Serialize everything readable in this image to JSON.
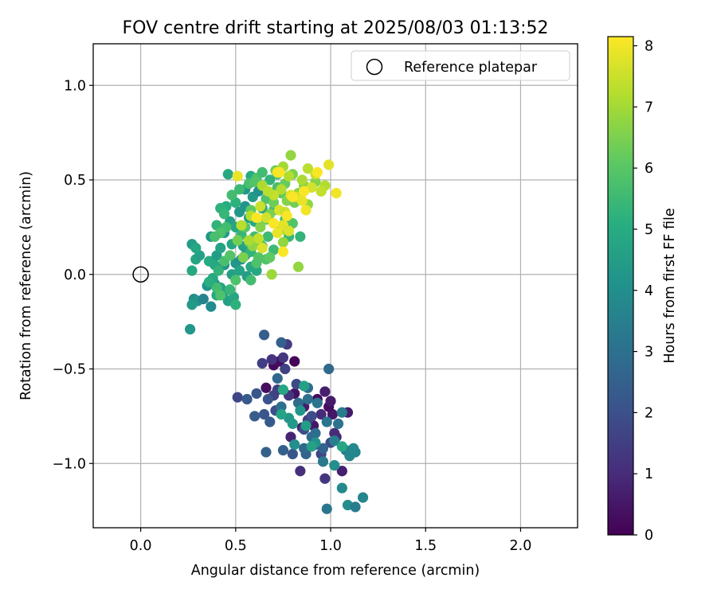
{
  "chart_data": {
    "type": "scatter",
    "title": "FOV centre drift starting at 2025/08/03 01:13:52",
    "xlabel": "Angular distance from reference (arcmin)",
    "ylabel": "Rotation from reference (arcmin)",
    "xlim": [
      -0.25,
      2.3
    ],
    "ylim": [
      -1.34,
      1.22
    ],
    "xticks": [
      0.0,
      0.5,
      1.0,
      1.5,
      2.0
    ],
    "xtick_labels": [
      "0.0",
      "0.5",
      "1.0",
      "1.5",
      "2.0"
    ],
    "yticks": [
      -1.0,
      -0.5,
      0.0,
      0.5,
      1.0
    ],
    "ytick_labels": [
      "−1.0",
      "−0.5",
      "0.0",
      "0.5",
      "1.0"
    ],
    "grid": true,
    "legend": {
      "placement": "top-right",
      "entries": [
        "Reference platepar"
      ]
    },
    "reference_point": {
      "label": "Reference platepar",
      "x": 0.0,
      "y": 0.0
    },
    "colorbar": {
      "label": "Hours from first FF file",
      "colormap": "viridis",
      "range": [
        0,
        8.15
      ],
      "ticks": [
        0,
        1,
        2,
        3,
        4,
        5,
        6,
        7,
        8
      ],
      "tick_labels": [
        "0",
        "1",
        "2",
        "3",
        "4",
        "5",
        "6",
        "7",
        "8"
      ]
    },
    "point_columns": [
      "x",
      "y",
      "hours"
    ],
    "points": [
      [
        0.81,
        -0.46,
        0.1
      ],
      [
        0.7,
        -0.48,
        0.2
      ],
      [
        0.73,
        -0.46,
        0.3
      ],
      [
        0.66,
        -0.6,
        0.3
      ],
      [
        0.81,
        -0.63,
        0.4
      ],
      [
        0.93,
        -0.66,
        0.2
      ],
      [
        1.01,
        -0.74,
        0.5
      ],
      [
        0.99,
        -0.7,
        0.3
      ],
      [
        1.0,
        -0.67,
        0.6
      ],
      [
        0.86,
        -0.7,
        0.6
      ],
      [
        0.91,
        -0.8,
        0.5
      ],
      [
        0.85,
        -0.81,
        0.7
      ],
      [
        0.79,
        -0.86,
        0.8
      ],
      [
        1.03,
        -0.86,
        0.9
      ],
      [
        1.09,
        -0.73,
        0.6
      ],
      [
        0.97,
        -0.62,
        0.7
      ],
      [
        0.95,
        -0.74,
        1.0
      ],
      [
        1.02,
        -0.84,
        1.0
      ],
      [
        0.84,
        -1.04,
        1.1
      ],
      [
        0.97,
        -1.08,
        1.2
      ],
      [
        1.06,
        -1.04,
        0.7
      ],
      [
        0.75,
        -0.44,
        1.3
      ],
      [
        0.69,
        -0.45,
        1.2
      ],
      [
        0.77,
        -0.37,
        1.4
      ],
      [
        0.72,
        -0.61,
        1.5
      ],
      [
        0.78,
        -0.64,
        1.3
      ],
      [
        0.7,
        -0.64,
        1.6
      ],
      [
        0.88,
        -0.77,
        1.4
      ],
      [
        0.92,
        -0.9,
        1.6
      ],
      [
        0.95,
        -0.95,
        1.7
      ],
      [
        1.0,
        -0.89,
        1.8
      ],
      [
        0.51,
        -0.65,
        1.7
      ],
      [
        0.64,
        -0.47,
        1.5
      ],
      [
        0.76,
        -0.5,
        1.6
      ],
      [
        0.82,
        -0.58,
        1.8
      ],
      [
        0.9,
        -0.75,
        1.9
      ],
      [
        0.86,
        -0.82,
        1.9
      ],
      [
        0.71,
        -0.72,
        2.0
      ],
      [
        0.67,
        -0.66,
        2.1
      ],
      [
        0.65,
        -0.74,
        2.2
      ],
      [
        0.56,
        -0.66,
        2.3
      ],
      [
        0.61,
        -0.63,
        2.2
      ],
      [
        0.6,
        -0.75,
        2.4
      ],
      [
        0.68,
        -0.78,
        2.3
      ],
      [
        0.75,
        -0.93,
        2.5
      ],
      [
        0.8,
        -0.95,
        2.2
      ],
      [
        0.87,
        -0.95,
        2.6
      ],
      [
        0.66,
        -0.94,
        2.5
      ],
      [
        0.86,
        -0.92,
        2.7
      ],
      [
        0.9,
        -0.86,
        2.8
      ],
      [
        0.96,
        -0.92,
        2.6
      ],
      [
        0.92,
        -0.84,
        2.9
      ],
      [
        0.74,
        -0.7,
        3.0
      ],
      [
        0.83,
        -0.68,
        2.9
      ],
      [
        0.88,
        -0.66,
        3.0
      ],
      [
        0.93,
        -0.68,
        3.1
      ],
      [
        0.98,
        -0.78,
        3.2
      ],
      [
        1.04,
        -0.79,
        3.1
      ],
      [
        0.99,
        -0.5,
        2.8
      ],
      [
        0.88,
        -0.6,
        2.9
      ],
      [
        0.72,
        -0.55,
        2.7
      ],
      [
        0.65,
        -0.32,
        2.4
      ],
      [
        0.74,
        -0.36,
        2.5
      ],
      [
        1.06,
        -0.73,
        3.4
      ],
      [
        1.02,
        -0.88,
        3.5
      ],
      [
        0.96,
        -0.99,
        3.3
      ],
      [
        1.13,
        -0.94,
        3.6
      ],
      [
        1.08,
        -0.93,
        3.5
      ],
      [
        1.1,
        -0.96,
        3.7
      ],
      [
        1.06,
        -1.13,
        3.8
      ],
      [
        1.09,
        -1.22,
        3.9
      ],
      [
        1.12,
        -0.92,
        3.8
      ],
      [
        1.02,
        -1.01,
        4.0
      ],
      [
        0.98,
        -1.24,
        3.2
      ],
      [
        1.13,
        -1.23,
        3.4
      ],
      [
        1.17,
        -1.18,
        3.7
      ],
      [
        0.92,
        -0.89,
        4.1
      ],
      [
        0.84,
        -0.72,
        4.2
      ],
      [
        0.78,
        -0.76,
        4.3
      ],
      [
        0.87,
        -0.8,
        4.5
      ],
      [
        0.9,
        -0.91,
        4.6
      ],
      [
        0.8,
        -0.79,
        4.4
      ],
      [
        0.74,
        -0.74,
        4.7
      ],
      [
        0.75,
        -0.61,
        4.8
      ],
      [
        0.86,
        -0.59,
        4.6
      ],
      [
        1.06,
        -0.91,
        4.8
      ],
      [
        0.81,
        -0.9,
        4.0
      ],
      [
        0.26,
        -0.29,
        4.3
      ],
      [
        0.28,
        -0.13,
        4.0
      ],
      [
        0.3,
        -0.14,
        4.2
      ],
      [
        0.27,
        -0.16,
        4.4
      ],
      [
        0.33,
        -0.13,
        3.6
      ],
      [
        0.37,
        -0.17,
        3.9
      ],
      [
        0.35,
        -0.06,
        4.1
      ],
      [
        0.39,
        -0.05,
        3.8
      ],
      [
        0.44,
        -0.09,
        4.5
      ],
      [
        0.46,
        -0.14,
        4.6
      ],
      [
        0.49,
        -0.12,
        4.8
      ],
      [
        0.42,
        -0.07,
        4.7
      ],
      [
        0.4,
        -0.11,
        4.9
      ],
      [
        0.38,
        -0.02,
        4.9
      ],
      [
        0.44,
        0.05,
        4.2
      ],
      [
        0.48,
        0.0,
        4.6
      ],
      [
        0.5,
        0.06,
        4.3
      ],
      [
        0.53,
        0.08,
        4.1
      ],
      [
        0.55,
        0.1,
        4.4
      ],
      [
        0.52,
        0.02,
        4.7
      ],
      [
        0.58,
        0.04,
        4.9
      ],
      [
        0.61,
        0.02,
        4.8
      ],
      [
        0.56,
        -0.01,
        4.5
      ],
      [
        0.29,
        0.08,
        4.8
      ],
      [
        0.27,
        0.02,
        4.9
      ],
      [
        0.31,
        0.1,
        4.6
      ],
      [
        0.27,
        0.16,
        4.5
      ],
      [
        0.29,
        0.14,
        4.8
      ],
      [
        0.36,
        0.07,
        5.0
      ],
      [
        0.39,
        0.05,
        4.9
      ],
      [
        0.37,
        0.2,
        4.3
      ],
      [
        0.4,
        0.1,
        4.5
      ],
      [
        0.42,
        0.14,
        4.7
      ],
      [
        0.44,
        0.22,
        4.4
      ],
      [
        0.47,
        0.28,
        4.6
      ],
      [
        0.5,
        0.25,
        4.8
      ],
      [
        0.52,
        0.33,
        4.3
      ],
      [
        0.55,
        0.36,
        4.2
      ],
      [
        0.57,
        0.3,
        4.5
      ],
      [
        0.59,
        0.41,
        4.4
      ],
      [
        0.62,
        0.44,
        4.1
      ],
      [
        0.55,
        0.45,
        4.3
      ],
      [
        0.46,
        0.53,
        4.9
      ],
      [
        0.58,
        0.52,
        5.0
      ],
      [
        0.64,
        0.35,
        4.7
      ],
      [
        0.6,
        0.28,
        4.9
      ],
      [
        0.48,
        0.16,
        4.8
      ],
      [
        0.54,
        0.15,
        4.6
      ],
      [
        0.45,
        0.36,
        5.0
      ],
      [
        0.42,
        0.35,
        5.2
      ],
      [
        0.4,
        0.26,
        5.3
      ],
      [
        0.44,
        0.32,
        5.4
      ],
      [
        0.5,
        0.38,
        5.2
      ],
      [
        0.53,
        0.21,
        5.4
      ],
      [
        0.58,
        0.12,
        5.3
      ],
      [
        0.63,
        0.16,
        5.4
      ],
      [
        0.67,
        0.2,
        5.5
      ],
      [
        0.6,
        0.2,
        5.6
      ],
      [
        0.57,
        0.17,
        5.8
      ],
      [
        0.62,
        0.09,
        5.9
      ],
      [
        0.66,
        0.08,
        5.9
      ],
      [
        0.7,
        0.13,
        5.5
      ],
      [
        0.48,
        0.42,
        5.6
      ],
      [
        0.52,
        0.45,
        5.5
      ],
      [
        0.57,
        0.48,
        5.7
      ],
      [
        0.61,
        0.51,
        5.8
      ],
      [
        0.64,
        0.54,
        5.6
      ],
      [
        0.6,
        0.49,
        5.9
      ],
      [
        0.72,
        0.46,
        5.7
      ],
      [
        0.66,
        0.4,
        5.8
      ],
      [
        0.7,
        0.34,
        5.6
      ],
      [
        0.76,
        0.29,
        5.7
      ],
      [
        0.8,
        0.27,
        5.9
      ],
      [
        0.74,
        0.24,
        5.5
      ],
      [
        0.78,
        0.2,
        5.4
      ],
      [
        0.84,
        0.2,
        5.3
      ],
      [
        0.72,
        0.53,
        5.9
      ],
      [
        0.68,
        0.5,
        5.3
      ],
      [
        0.45,
        0.25,
        5.6
      ],
      [
        0.42,
        0.22,
        5.8
      ],
      [
        0.39,
        0.2,
        5.7
      ],
      [
        0.41,
        0.02,
        5.3
      ],
      [
        0.4,
        -0.07,
        5.6
      ],
      [
        0.42,
        -0.11,
        5.8
      ],
      [
        0.36,
        -0.04,
        5.1
      ],
      [
        0.44,
        0.07,
        5.7
      ],
      [
        0.47,
        0.1,
        5.9
      ],
      [
        0.5,
        -0.16,
        5.2
      ],
      [
        0.47,
        -0.08,
        5.4
      ],
      [
        0.5,
        -0.03,
        5.8
      ],
      [
        0.58,
        -0.03,
        5.6
      ],
      [
        0.61,
        0.06,
        5.8
      ],
      [
        0.64,
        0.15,
        5.9
      ],
      [
        0.55,
        0.25,
        6.0
      ],
      [
        0.58,
        0.34,
        6.1
      ],
      [
        0.66,
        0.29,
        6.2
      ],
      [
        0.7,
        0.38,
        6.3
      ],
      [
        0.74,
        0.43,
        6.1
      ],
      [
        0.76,
        0.48,
        6.2
      ],
      [
        0.71,
        0.55,
        6.4
      ],
      [
        0.8,
        0.53,
        6.5
      ],
      [
        0.77,
        0.39,
        6.6
      ],
      [
        0.83,
        0.43,
        6.7
      ],
      [
        0.86,
        0.47,
        6.6
      ],
      [
        0.68,
        0.32,
        6.5
      ],
      [
        0.73,
        0.25,
        6.7
      ],
      [
        0.75,
        0.17,
        6.8
      ],
      [
        0.63,
        0.25,
        6.6
      ],
      [
        0.51,
        0.18,
        6.4
      ],
      [
        0.54,
        0.09,
        6.5
      ],
      [
        0.59,
        0.15,
        6.7
      ],
      [
        0.69,
        0.0,
        6.9
      ],
      [
        0.75,
        0.24,
        6.9
      ],
      [
        0.68,
        0.09,
        6.1
      ],
      [
        0.81,
        0.38,
        6.4
      ],
      [
        0.88,
        0.37,
        6.8
      ],
      [
        0.92,
        0.49,
        6.6
      ],
      [
        0.95,
        0.44,
        6.9
      ],
      [
        0.83,
        0.04,
        6.8
      ],
      [
        0.79,
        0.63,
        6.8
      ],
      [
        0.75,
        0.57,
        7.0
      ],
      [
        0.78,
        0.52,
        7.2
      ],
      [
        0.85,
        0.5,
        7.1
      ],
      [
        0.88,
        0.56,
        7.3
      ],
      [
        0.92,
        0.53,
        7.5
      ],
      [
        0.97,
        0.47,
        7.2
      ],
      [
        0.95,
        0.44,
        7.4
      ],
      [
        0.9,
        0.46,
        7.6
      ],
      [
        0.74,
        0.45,
        7.2
      ],
      [
        0.7,
        0.42,
        7.4
      ],
      [
        0.64,
        0.47,
        7.1
      ],
      [
        0.67,
        0.44,
        7.3
      ],
      [
        0.63,
        0.36,
        7.5
      ],
      [
        0.58,
        0.31,
        7.2
      ],
      [
        0.66,
        0.3,
        7.6
      ],
      [
        0.73,
        0.34,
        7.7
      ],
      [
        0.76,
        0.33,
        7.5
      ],
      [
        0.79,
        0.42,
        7.8
      ],
      [
        0.82,
        0.41,
        7.6
      ],
      [
        0.85,
        0.39,
        7.9
      ],
      [
        0.75,
        0.26,
        7.8
      ],
      [
        0.78,
        0.23,
        7.7
      ],
      [
        0.72,
        0.22,
        7.9
      ],
      [
        0.62,
        0.19,
        7.4
      ],
      [
        0.57,
        0.18,
        7.1
      ],
      [
        0.53,
        0.26,
        7.3
      ],
      [
        0.51,
        0.52,
        7.9
      ],
      [
        0.64,
        0.14,
        7.7
      ],
      [
        0.72,
        0.54,
        8.0
      ],
      [
        0.87,
        0.34,
        8.0
      ],
      [
        0.99,
        0.58,
        7.8
      ],
      [
        1.03,
        0.43,
        8.0
      ],
      [
        0.93,
        0.54,
        8.1
      ],
      [
        0.86,
        0.44,
        8.1
      ],
      [
        0.8,
        0.41,
        8.1
      ],
      [
        0.73,
        0.54,
        8.1
      ],
      [
        0.77,
        0.31,
        8.1
      ],
      [
        0.7,
        0.27,
        8.1
      ],
      [
        0.61,
        0.3,
        8.1
      ],
      [
        0.75,
        0.12,
        8.1
      ]
    ]
  }
}
